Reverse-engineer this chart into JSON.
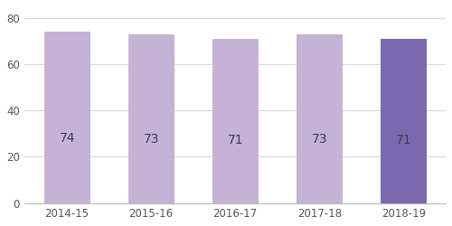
{
  "categories": [
    "2014-15",
    "2015-16",
    "2016-17",
    "2017-18",
    "2018-19"
  ],
  "values": [
    74,
    73,
    71,
    73,
    71
  ],
  "bar_colors": [
    "#c5b3d5",
    "#c5b3d5",
    "#c5b3d5",
    "#c5b3d5",
    "#7b68ae"
  ],
  "label_color": "#3a3a5c",
  "ylim": [
    0,
    85
  ],
  "yticks": [
    0,
    20,
    40,
    60,
    80
  ],
  "grid_color": "#d8d8d8",
  "bar_label_fontsize": 10,
  "tick_fontsize": 8.5,
  "bar_width": 0.55,
  "figsize": [
    5.0,
    2.5
  ],
  "dpi": 100
}
